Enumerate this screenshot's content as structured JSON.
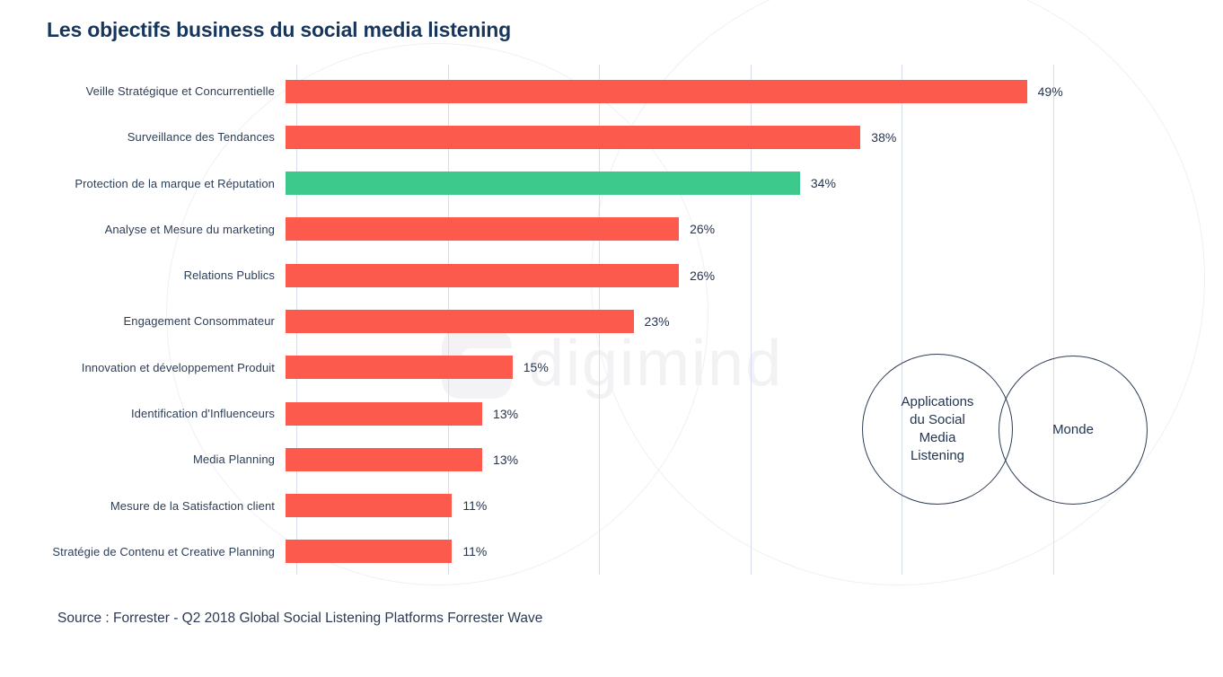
{
  "title": "Les objectifs business du social media listening",
  "source": "Source : Forrester  -  Q2 2018 Global Social Listening Platforms Forrester Wave",
  "watermark": "digimind",
  "colors": {
    "bar_default": "#fc5a4d",
    "bar_highlight": "#3ec98c",
    "gridline": "#d6ddef",
    "title": "#17365c",
    "label": "#2d3e57",
    "circle_stroke": "#2d3e55"
  },
  "chart_data": {
    "type": "bar",
    "orientation": "horizontal",
    "title": "Les objectifs business du social media listening",
    "categories": [
      "Veille Stratégique et Concurrentielle",
      "Surveillance des Tendances",
      "Protection de la marque et Réputation",
      "Analyse et Mesure du marketing",
      "Relations Publics",
      "Engagement Consommateur",
      "Innovation et développement Produit",
      "Identification d'Influenceurs",
      "Media Planning",
      "Mesure de la Satisfaction client",
      "Stratégie de Contenu et Creative Planning"
    ],
    "values": [
      49,
      38,
      34,
      26,
      26,
      23,
      15,
      13,
      13,
      11,
      11
    ],
    "value_labels": [
      "49%",
      "38%",
      "34%",
      "26%",
      "26%",
      "23%",
      "15%",
      "13%",
      "13%",
      "11%",
      "11%"
    ],
    "highlight_index": 2,
    "highlighted_category": "Protection de la marque et Réputation",
    "xlim": [
      0,
      50
    ],
    "gridlines_percent": [
      0,
      10,
      20,
      30,
      40,
      50
    ],
    "grid": true,
    "legend": false,
    "xlabel": "",
    "ylabel": ""
  },
  "venn": {
    "left_label": "Applications\ndu Social\nMedia\nListening",
    "right_label": "Monde"
  }
}
